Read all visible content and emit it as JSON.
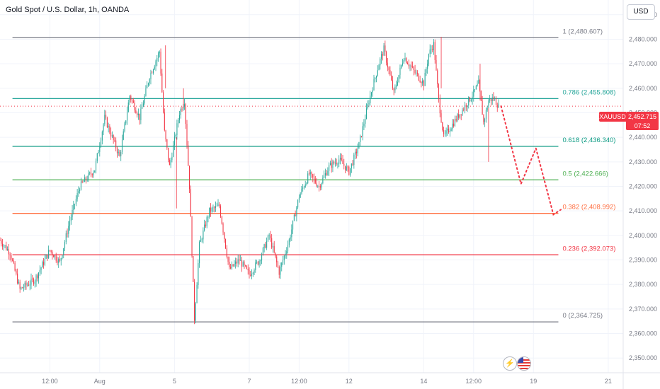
{
  "header": {
    "title": "Gold Spot / U.S. Dollar, 1h, OANDA"
  },
  "currency_button": {
    "label": "USD"
  },
  "price_tag": {
    "symbol": "XAUUSD",
    "price": "2,452.715",
    "countdown": "07:52"
  },
  "colors": {
    "up": "#26a69a",
    "down": "#f23645",
    "grid": "#f0f3fa",
    "fib_0": "#787b86",
    "fib_1": "#787b86",
    "fib_0236": "#f23645",
    "fib_0382": "#ff7043",
    "fib_05": "#4caf50",
    "fib_0618": "#089981",
    "fib_0786": "#26a69a",
    "projection": "#f23645"
  },
  "icons": [
    "lightning-icon",
    "us-flag-icon"
  ],
  "chart_data": {
    "type": "candlestick",
    "title": "Gold Spot / U.S. Dollar, 1h, OANDA",
    "ylim": [
      2344,
      2496
    ],
    "y_ticks": [
      2350,
      2360,
      2370,
      2380,
      2390,
      2400,
      2410,
      2420,
      2430,
      2440,
      2450,
      2460,
      2470,
      2480,
      2490
    ],
    "y_tick_labels": [
      "2,350.000",
      "2,360.000",
      "2,370.000",
      "2,380.000",
      "2,390.000",
      "2,400.000",
      "2,410.000",
      "2,420.000",
      "2,430.000",
      "2,440.000",
      "2,450.000",
      "2,460.000",
      "2,470.000",
      "2,480.000",
      "2,490.000"
    ],
    "x_ticks": [
      {
        "label": "12:00",
        "bar": 10
      },
      {
        "label": "Aug",
        "bar": 20
      },
      {
        "label": "5",
        "bar": 35
      },
      {
        "label": "7",
        "bar": 50
      },
      {
        "label": "12:00",
        "bar": 60
      },
      {
        "label": "12",
        "bar": 70
      },
      {
        "label": "14",
        "bar": 85
      },
      {
        "label": "12:00",
        "bar": 95
      },
      {
        "label": "19",
        "bar": 107
      },
      {
        "label": "21",
        "bar": 122
      }
    ],
    "x_range": [
      0,
      125
    ],
    "fib_levels": [
      {
        "ratio": "1",
        "price": 2480.607,
        "label": "1 (2,480.607)"
      },
      {
        "ratio": "0.786",
        "price": 2455.808,
        "label": "0.786 (2,455.808)"
      },
      {
        "ratio": "0.618",
        "price": 2436.34,
        "label": "0.618 (2,436.340)"
      },
      {
        "ratio": "0.5",
        "price": 2422.666,
        "label": "0.5 (2,422.666)"
      },
      {
        "ratio": "0.382",
        "price": 2408.992,
        "label": "0.382 (2,408.992)"
      },
      {
        "ratio": "0.236",
        "price": 2392.073,
        "label": "0.236 (2,392.073)"
      },
      {
        "ratio": "0",
        "price": 2364.725,
        "label": "0 (2,364.725)"
      }
    ],
    "fib_x_range": [
      2.5,
      112
    ],
    "current_price": 2452.715,
    "projection_path": [
      {
        "x": 100.5,
        "y": 2452.7
      },
      {
        "x": 104.5,
        "y": 2421
      },
      {
        "x": 107.5,
        "y": 2435.5
      },
      {
        "x": 111,
        "y": 2408.5
      },
      {
        "x": 112.5,
        "y": 2410.5
      }
    ],
    "anchors": [
      {
        "x": 0,
        "y": 2398
      },
      {
        "x": 2,
        "y": 2393
      },
      {
        "x": 4,
        "y": 2378
      },
      {
        "x": 7,
        "y": 2382
      },
      {
        "x": 10,
        "y": 2394
      },
      {
        "x": 12,
        "y": 2389
      },
      {
        "x": 14,
        "y": 2406
      },
      {
        "x": 16,
        "y": 2420
      },
      {
        "x": 19,
        "y": 2427
      },
      {
        "x": 21,
        "y": 2448
      },
      {
        "x": 24,
        "y": 2432
      },
      {
        "x": 26,
        "y": 2457
      },
      {
        "x": 28,
        "y": 2448
      },
      {
        "x": 30,
        "y": 2465
      },
      {
        "x": 32,
        "y": 2475
      },
      {
        "x": 33,
        "y": 2442
      },
      {
        "x": 34,
        "y": 2428
      },
      {
        "x": 36,
        "y": 2450
      },
      {
        "x": 37,
        "y": 2455
      },
      {
        "x": 38,
        "y": 2420
      },
      {
        "x": 39,
        "y": 2366
      },
      {
        "x": 40,
        "y": 2396
      },
      {
        "x": 42,
        "y": 2410
      },
      {
        "x": 44,
        "y": 2412
      },
      {
        "x": 46,
        "y": 2386
      },
      {
        "x": 48,
        "y": 2390
      },
      {
        "x": 50,
        "y": 2384
      },
      {
        "x": 52,
        "y": 2390
      },
      {
        "x": 54,
        "y": 2400
      },
      {
        "x": 56,
        "y": 2385
      },
      {
        "x": 58,
        "y": 2398
      },
      {
        "x": 60,
        "y": 2416
      },
      {
        "x": 62,
        "y": 2425
      },
      {
        "x": 64,
        "y": 2420
      },
      {
        "x": 66,
        "y": 2428
      },
      {
        "x": 68,
        "y": 2431
      },
      {
        "x": 70,
        "y": 2426
      },
      {
        "x": 72,
        "y": 2437
      },
      {
        "x": 74,
        "y": 2455
      },
      {
        "x": 76,
        "y": 2470
      },
      {
        "x": 77,
        "y": 2476
      },
      {
        "x": 79,
        "y": 2458
      },
      {
        "x": 81,
        "y": 2473
      },
      {
        "x": 83,
        "y": 2467
      },
      {
        "x": 85,
        "y": 2462
      },
      {
        "x": 86,
        "y": 2474
      },
      {
        "x": 87,
        "y": 2478
      },
      {
        "x": 88,
        "y": 2455
      },
      {
        "x": 89,
        "y": 2440
      },
      {
        "x": 91,
        "y": 2446
      },
      {
        "x": 93,
        "y": 2452
      },
      {
        "x": 95,
        "y": 2458
      },
      {
        "x": 96,
        "y": 2462
      },
      {
        "x": 97,
        "y": 2446
      },
      {
        "x": 98,
        "y": 2455
      },
      {
        "x": 99,
        "y": 2456
      },
      {
        "x": 100,
        "y": 2452.7
      }
    ]
  }
}
